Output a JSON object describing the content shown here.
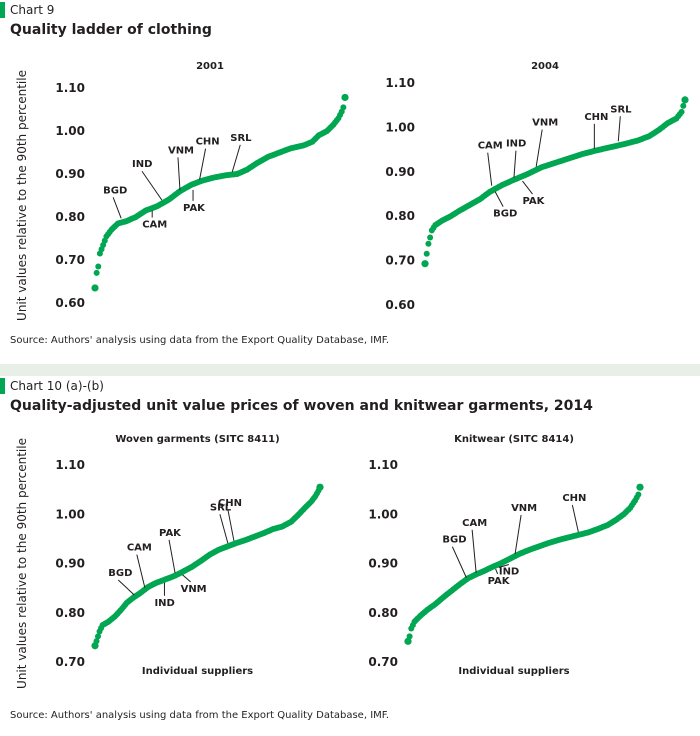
{
  "section1": {
    "chart_number": "Chart 9",
    "title": "Quality ladder of clothing",
    "source": "Source: Authors' analysis using data from the Export Quality Database, IMF."
  },
  "section2": {
    "chart_number": "Chart 10 (a)-(b)",
    "title": "Quality-adjusted unit value prices of woven and knitwear garments, 2014",
    "source": "Source: Authors' analysis using data from the Export Quality Database, IMF."
  },
  "colors": {
    "dots": "#00a651",
    "accent_bar": "#00a651",
    "separator": "#e8efe6"
  },
  "chart_data": [
    {
      "type": "scatter",
      "title": "2001",
      "ylabel": "Unit values relative to the 90th percentile",
      "xlabel": "",
      "ylim": [
        0.6,
        1.1
      ],
      "yticks": [
        "0.60",
        "0.70",
        "0.80",
        "0.90",
        "1.00",
        "1.10"
      ],
      "grid": false,
      "anchors": [
        [
          0,
          0.635
        ],
        [
          1,
          0.67
        ],
        [
          2,
          0.685
        ],
        [
          3,
          0.715
        ],
        [
          5,
          0.735
        ],
        [
          7,
          0.755
        ],
        [
          10,
          0.77
        ],
        [
          14,
          0.785
        ],
        [
          19,
          0.79
        ],
        [
          25,
          0.8
        ],
        [
          31,
          0.815
        ],
        [
          38,
          0.825
        ],
        [
          45,
          0.84
        ],
        [
          52,
          0.86
        ],
        [
          59,
          0.875
        ],
        [
          66,
          0.885
        ],
        [
          73,
          0.892
        ],
        [
          80,
          0.897
        ],
        [
          87,
          0.9
        ],
        [
          93,
          0.91
        ],
        [
          99,
          0.925
        ],
        [
          106,
          0.94
        ],
        [
          113,
          0.95
        ],
        [
          120,
          0.96
        ],
        [
          128,
          0.967
        ],
        [
          133,
          0.975
        ],
        [
          137,
          0.99
        ],
        [
          142,
          1.0
        ],
        [
          146,
          1.015
        ],
        [
          149,
          1.03
        ],
        [
          151,
          1.045
        ],
        [
          152,
          1.055
        ],
        [
          153,
          1.078
        ]
      ],
      "labels": [
        {
          "text": "BGD",
          "x": 16,
          "y": 0.79
        },
        {
          "text": "CAM",
          "x": 35,
          "y": 0.822
        },
        {
          "text": "IND",
          "x": 41,
          "y": 0.832
        },
        {
          "text": "VNM",
          "x": 52,
          "y": 0.855
        },
        {
          "text": "PAK",
          "x": 60,
          "y": 0.87
        },
        {
          "text": "CHN",
          "x": 64,
          "y": 0.88
        },
        {
          "text": "SRL",
          "x": 84,
          "y": 0.898
        }
      ]
    },
    {
      "type": "scatter",
      "title": "2004",
      "ylabel": "",
      "xlabel": "",
      "ylim": [
        0.6,
        1.1
      ],
      "yticks": [
        "0.60",
        "0.70",
        "0.80",
        "0.90",
        "1.00",
        "1.10"
      ],
      "grid": false,
      "anchors": [
        [
          0,
          0.693
        ],
        [
          2,
          0.738
        ],
        [
          3,
          0.752
        ],
        [
          4,
          0.768
        ],
        [
          6,
          0.78
        ],
        [
          10,
          0.79
        ],
        [
          15,
          0.8
        ],
        [
          20,
          0.812
        ],
        [
          26,
          0.825
        ],
        [
          32,
          0.838
        ],
        [
          38,
          0.855
        ],
        [
          45,
          0.87
        ],
        [
          52,
          0.882
        ],
        [
          60,
          0.895
        ],
        [
          68,
          0.91
        ],
        [
          76,
          0.92
        ],
        [
          84,
          0.93
        ],
        [
          92,
          0.94
        ],
        [
          100,
          0.948
        ],
        [
          108,
          0.955
        ],
        [
          116,
          0.962
        ],
        [
          124,
          0.97
        ],
        [
          131,
          0.98
        ],
        [
          137,
          0.995
        ],
        [
          142,
          1.01
        ],
        [
          147,
          1.02
        ],
        [
          150,
          1.035
        ],
        [
          152,
          1.062
        ]
      ],
      "labels": [
        {
          "text": "CAM",
          "x": 39,
          "y": 0.862
        },
        {
          "text": "BGD",
          "x": 41,
          "y": 0.862
        },
        {
          "text": "IND",
          "x": 52,
          "y": 0.88
        },
        {
          "text": "PAK",
          "x": 57,
          "y": 0.886
        },
        {
          "text": "VNM",
          "x": 65,
          "y": 0.905
        },
        {
          "text": "CHN",
          "x": 99,
          "y": 0.945
        },
        {
          "text": "SRL",
          "x": 113,
          "y": 0.962
        }
      ]
    },
    {
      "type": "scatter",
      "title": "Woven garments (SITC 8411)",
      "ylabel": "Unit values relative to the 90th percentile",
      "xlabel": "Individual suppliers",
      "ylim": [
        0.7,
        1.1
      ],
      "yticks": [
        "0.70",
        "0.80",
        "0.90",
        "1.00",
        "1.10"
      ],
      "grid": false,
      "anchors": [
        [
          0,
          0.733
        ],
        [
          2,
          0.752
        ],
        [
          3,
          0.762
        ],
        [
          5,
          0.775
        ],
        [
          9,
          0.782
        ],
        [
          13,
          0.792
        ],
        [
          17,
          0.805
        ],
        [
          21,
          0.82
        ],
        [
          25,
          0.83
        ],
        [
          30,
          0.84
        ],
        [
          35,
          0.852
        ],
        [
          40,
          0.86
        ],
        [
          46,
          0.867
        ],
        [
          52,
          0.874
        ],
        [
          58,
          0.883
        ],
        [
          64,
          0.893
        ],
        [
          70,
          0.905
        ],
        [
          76,
          0.918
        ],
        [
          82,
          0.928
        ],
        [
          88,
          0.935
        ],
        [
          94,
          0.942
        ],
        [
          100,
          0.948
        ],
        [
          106,
          0.955
        ],
        [
          112,
          0.962
        ],
        [
          118,
          0.97
        ],
        [
          124,
          0.975
        ],
        [
          130,
          0.985
        ],
        [
          135,
          1.0
        ],
        [
          139,
          1.013
        ],
        [
          143,
          1.025
        ],
        [
          146,
          1.037
        ],
        [
          148,
          1.048
        ],
        [
          149,
          1.055
        ]
      ],
      "labels": [
        {
          "text": "BGD",
          "x": 26,
          "y": 0.83
        },
        {
          "text": "CAM",
          "x": 33,
          "y": 0.845
        },
        {
          "text": "IND",
          "x": 46,
          "y": 0.867
        },
        {
          "text": "PAK",
          "x": 53,
          "y": 0.875
        },
        {
          "text": "VNM",
          "x": 58,
          "y": 0.883
        },
        {
          "text": "SRL",
          "x": 88,
          "y": 0.935
        },
        {
          "text": "CHN",
          "x": 92,
          "y": 0.94
        }
      ]
    },
    {
      "type": "scatter",
      "title": "Knitwear (SITC 8414)",
      "ylabel": "",
      "xlabel": "Individual suppliers",
      "ylim": [
        0.7,
        1.1
      ],
      "yticks": [
        "0.70",
        "0.80",
        "0.90",
        "1.00",
        "1.10"
      ],
      "grid": false,
      "anchors": [
        [
          0,
          0.742
        ],
        [
          1,
          0.752
        ],
        [
          2,
          0.768
        ],
        [
          4,
          0.782
        ],
        [
          8,
          0.795
        ],
        [
          12,
          0.806
        ],
        [
          17,
          0.818
        ],
        [
          22,
          0.832
        ],
        [
          27,
          0.845
        ],
        [
          32,
          0.858
        ],
        [
          37,
          0.87
        ],
        [
          42,
          0.878
        ],
        [
          47,
          0.885
        ],
        [
          52,
          0.893
        ],
        [
          57,
          0.9
        ],
        [
          63,
          0.91
        ],
        [
          69,
          0.92
        ],
        [
          75,
          0.928
        ],
        [
          81,
          0.935
        ],
        [
          87,
          0.942
        ],
        [
          93,
          0.948
        ],
        [
          99,
          0.953
        ],
        [
          105,
          0.958
        ],
        [
          111,
          0.963
        ],
        [
          117,
          0.97
        ],
        [
          123,
          0.978
        ],
        [
          128,
          0.988
        ],
        [
          133,
          1.0
        ],
        [
          137,
          1.013
        ],
        [
          140,
          1.028
        ],
        [
          142,
          1.04
        ],
        [
          143,
          1.055
        ]
      ],
      "labels": [
        {
          "text": "BGD",
          "x": 36,
          "y": 0.865
        },
        {
          "text": "CAM",
          "x": 42,
          "y": 0.875
        },
        {
          "text": "PAK",
          "x": 54,
          "y": 0.895
        },
        {
          "text": "IND",
          "x": 56,
          "y": 0.898
        },
        {
          "text": "VNM",
          "x": 66,
          "y": 0.913
        },
        {
          "text": "CHN",
          "x": 105,
          "y": 0.958
        }
      ]
    }
  ]
}
